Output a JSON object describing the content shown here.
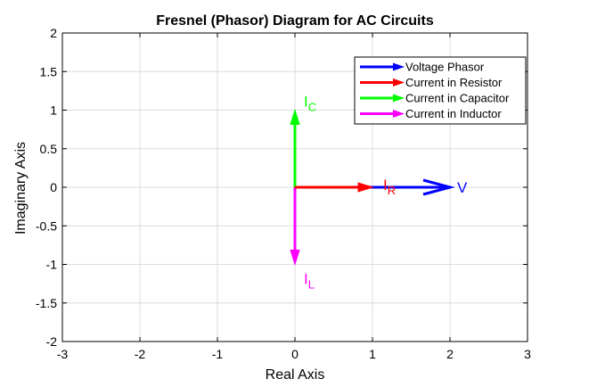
{
  "chart_data": {
    "type": "line",
    "title": "Fresnel (Phasor) Diagram for AC Circuits",
    "xlabel": "Real Axis",
    "ylabel": "Imaginary Axis",
    "xlim": [
      -3,
      3
    ],
    "ylim": [
      -2,
      2
    ],
    "xticks": [
      "-3",
      "-2",
      "-1",
      "0",
      "1",
      "2",
      "3"
    ],
    "yticks": [
      "2",
      "1.5",
      "1",
      "0.5",
      "0",
      "-0.5",
      "-1",
      "-1.5",
      "-2"
    ],
    "grid": true,
    "legend_position": "top-right",
    "series": [
      {
        "name": "Voltage Phasor",
        "color": "#0000ff",
        "from": [
          0,
          0
        ],
        "to": [
          2,
          0
        ],
        "label_main": "V",
        "label_sub": ""
      },
      {
        "name": "Current in Resistor",
        "color": "#ff0000",
        "from": [
          0,
          0
        ],
        "to": [
          1,
          0
        ],
        "label_main": "I",
        "label_sub": "R"
      },
      {
        "name": "Current in Capacitor",
        "color": "#00ff00",
        "from": [
          0,
          0
        ],
        "to": [
          0,
          1
        ],
        "label_main": "I",
        "label_sub": "C"
      },
      {
        "name": "Current in Inductor",
        "color": "#ff00ff",
        "from": [
          0,
          0
        ],
        "to": [
          0,
          -1
        ],
        "label_main": "I",
        "label_sub": "L"
      }
    ]
  }
}
